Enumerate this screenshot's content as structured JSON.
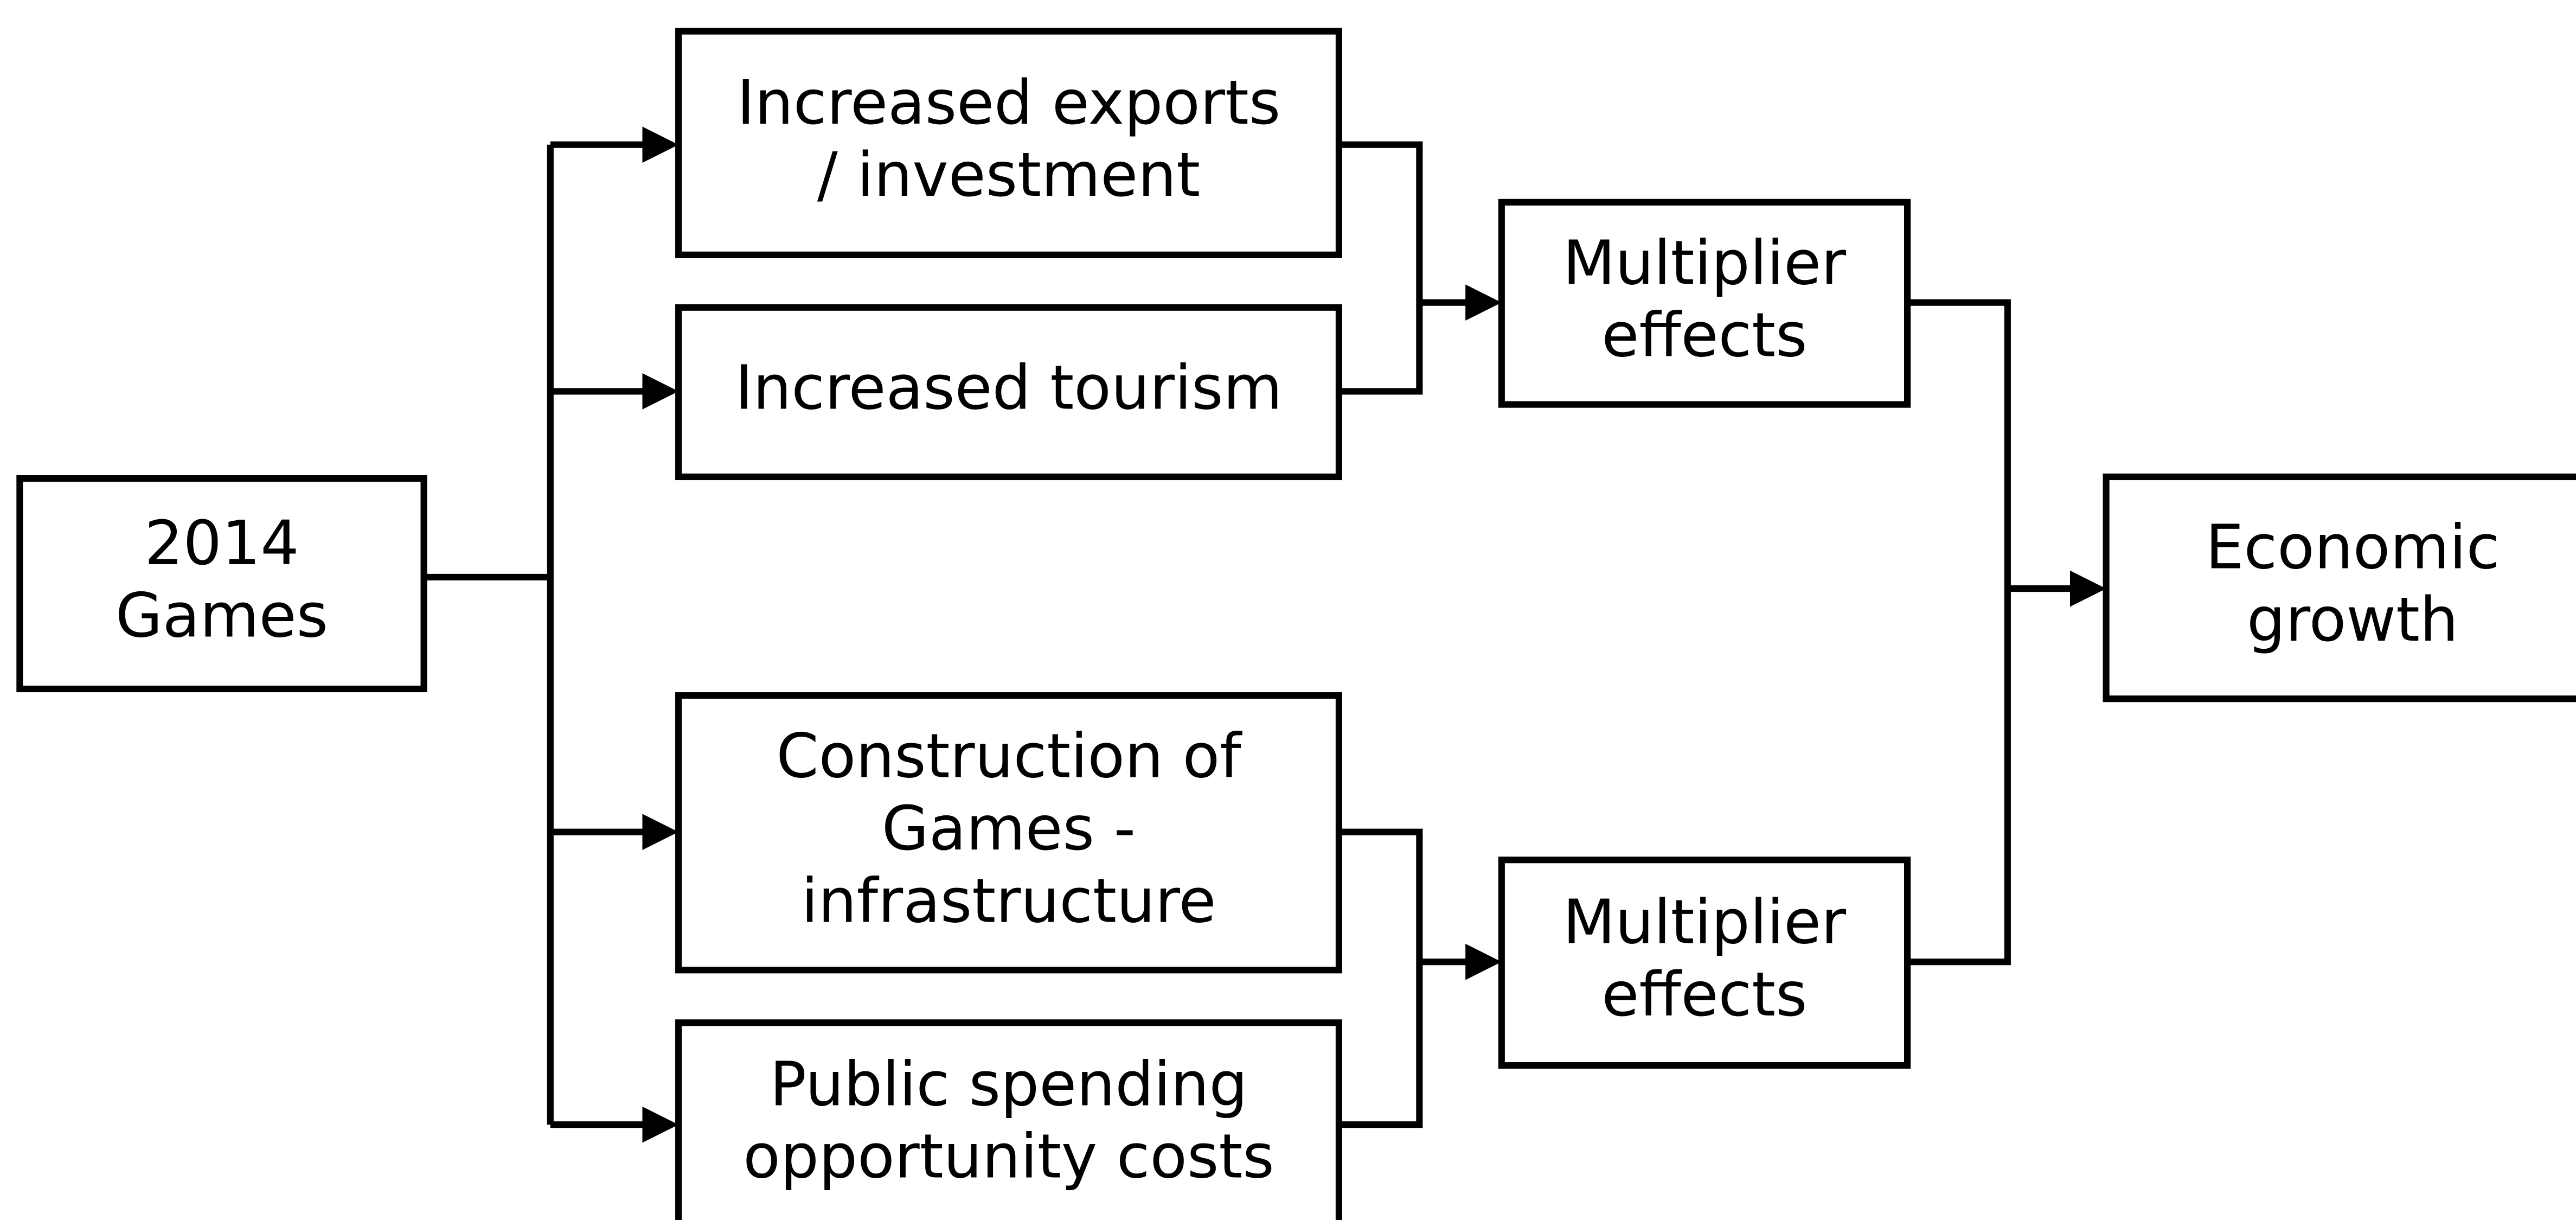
{
  "nodes": [
    {
      "label": [
        "2014",
        "Games"
      ]
    },
    {
      "label": [
        "Increased exports",
        "/ investment"
      ]
    },
    {
      "label": [
        "Increased tourism"
      ]
    },
    {
      "label": [
        "Construction of",
        "Games -",
        "infrastructure"
      ]
    },
    {
      "label": [
        "Public spending",
        "opportunity costs"
      ]
    },
    {
      "label": [
        "Multiplier",
        "effects"
      ]
    },
    {
      "label": [
        "Multiplier",
        "effects"
      ]
    },
    {
      "label": [
        "Economic",
        "growth"
      ]
    }
  ]
}
